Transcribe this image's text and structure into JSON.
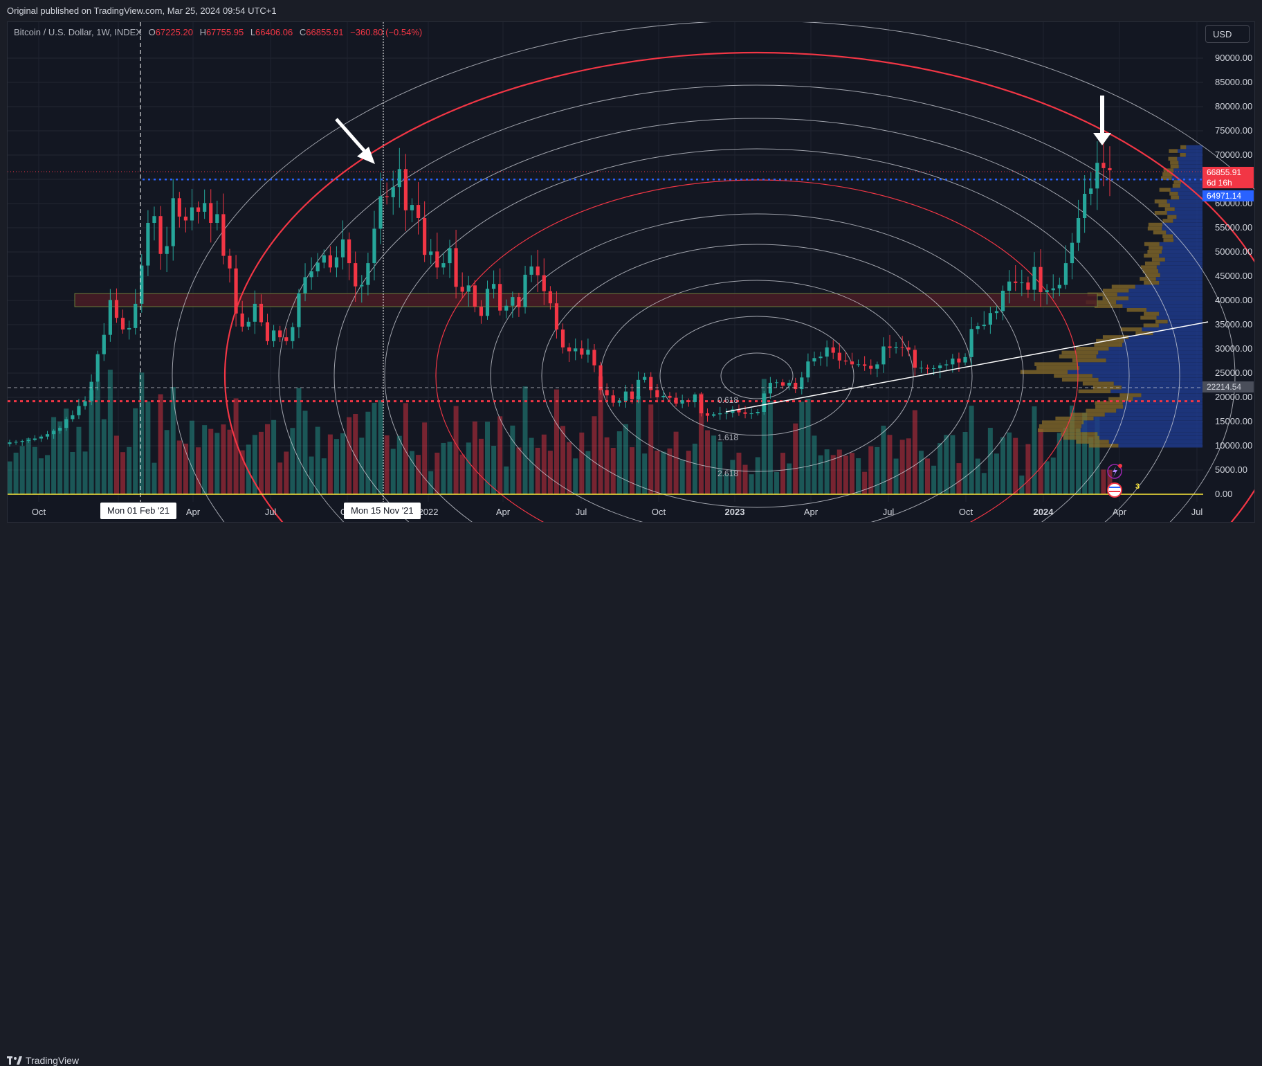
{
  "header": {
    "published": "Original published on TradingView.com, Mar 25, 2024 09:54 UTC+1"
  },
  "legend": {
    "symbol": "Bitcoin / U.S. Dollar, 1W, INDEX",
    "o_label": "O",
    "open": "67225.20",
    "h_label": "H",
    "high": "67755.95",
    "l_label": "L",
    "low": "66406.06",
    "c_label": "C",
    "close": "66855.91",
    "change": "−360.80 (−0.54%)"
  },
  "toolbar": {
    "currency": "USD"
  },
  "footer": {
    "brand": "TradingView"
  },
  "crosshair_labels": {
    "left_date": "Mon 01 Feb '21",
    "right_date": "Mon 15 Nov '21"
  },
  "price_badges": {
    "last_price": "66855.91",
    "countdown": "6d 16h",
    "line_price": "64971.14",
    "crosshair_price": "22214.54"
  },
  "fib_labels": [
    "0.618",
    "1.618",
    "2.618"
  ],
  "volume_marker": "3",
  "colors": {
    "up": "#26a69a",
    "down": "#f23645",
    "background": "#131722",
    "fib_circle": "#d1d4dc",
    "fib_key_circle": "#f23645",
    "level_blue": "#2962ff",
    "level_red": "#f23645",
    "volume_profile": "#1e3a8a",
    "zone": "#4a1c24"
  },
  "chart_data": {
    "type": "candlestick",
    "title": "",
    "symbol": "Bitcoin / U.S. Dollar",
    "interval": "1W",
    "x_ticks": [
      "Oct",
      "Jan",
      "Apr",
      "Jul",
      "Oct",
      "2022",
      "Apr",
      "Jul",
      "Oct",
      "2023",
      "Apr",
      "Jul",
      "Oct",
      "2024",
      "Apr",
      "Jul"
    ],
    "y_ticks": [
      "90000.00",
      "85000.00",
      "80000.00",
      "75000.00",
      "70000.00",
      "65000.00",
      "60000.00",
      "55000.00",
      "50000.00",
      "45000.00",
      "40000.00",
      "35000.00",
      "30000.00",
      "25000.00",
      "20000.00",
      "15000.00",
      "10000.00",
      "5000.00",
      "0.00"
    ],
    "ylim": [
      0,
      92000
    ],
    "weekly_close": [
      10700,
      10800,
      11000,
      11200,
      11500,
      11900,
      12400,
      13100,
      13700,
      15500,
      16300,
      18200,
      19200,
      23200,
      28900,
      32900,
      40100,
      36400,
      34000,
      34300,
      39300,
      47200,
      56000,
      57400,
      49600,
      51200,
      61100,
      57300,
      56500,
      59200,
      58300,
      60100,
      56000,
      57800,
      49200,
      46600,
      37300,
      34600,
      35600,
      39300,
      35500,
      31600,
      33800,
      32400,
      31600,
      34500,
      41500,
      44800,
      46000,
      47800,
      49300,
      46800,
      48900,
      52600,
      47700,
      42900,
      43200,
      47700,
      54800,
      61500,
      61300,
      63400,
      67100,
      58600,
      59700,
      57000,
      49400,
      50100,
      46800,
      47700,
      50800,
      42800,
      41800,
      43100,
      38700,
      36800,
      42400,
      43400,
      37900,
      38900,
      40700,
      38600,
      45300,
      47000,
      45200,
      41900,
      39400,
      34000,
      30300,
      29500,
      30100,
      28800,
      29800,
      26600,
      21500,
      20400,
      18900,
      19300,
      21200,
      19600,
      23600,
      24200,
      21500,
      20000,
      20300,
      19900,
      18700,
      19400,
      19000,
      20600,
      16700,
      16200,
      16500,
      16700,
      16800,
      17500,
      16900,
      16600,
      16700,
      17000,
      20800,
      23000,
      23100,
      22400,
      23000,
      21700,
      24100,
      27400,
      28100,
      28400,
      30300,
      29200,
      27600,
      27400,
      26800,
      26800,
      26500,
      25900,
      26800,
      30500,
      30200,
      30400,
      30300,
      29800,
      26100,
      26100,
      25900,
      26000,
      26600,
      26800,
      28000,
      27200,
      28300,
      34100,
      34700,
      35000,
      37400,
      37800,
      42000,
      43900,
      43600,
      43700,
      42200,
      46900,
      41700,
      42100,
      42500,
      43200,
      47700,
      51900,
      57000,
      62000,
      63100,
      68400,
      67300,
      66855.91
    ],
    "levels": {
      "resistance": 64971.14,
      "support": 19200,
      "zone": [
        39500,
        42000
      ]
    }
  }
}
